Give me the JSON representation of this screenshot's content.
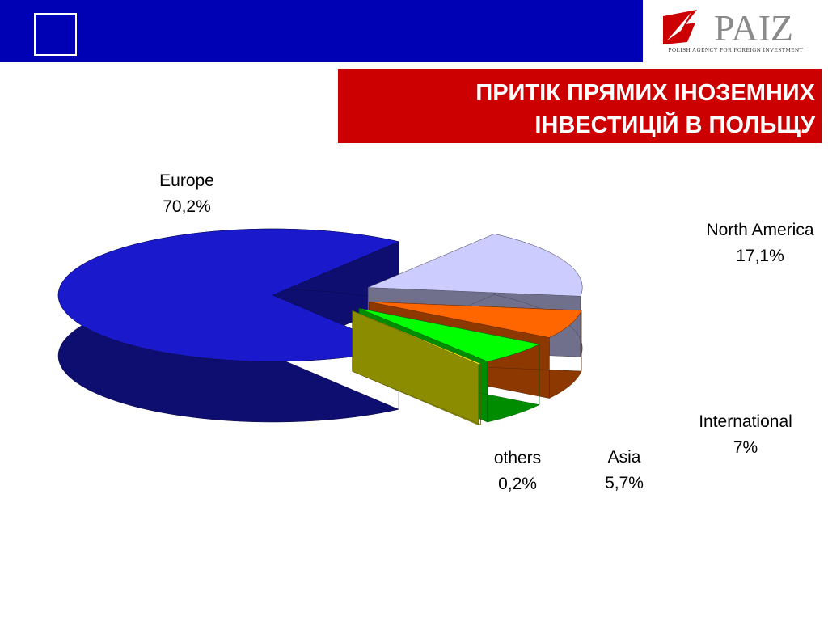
{
  "header": {
    "logo": "PAIZ",
    "logo_subtitle": "POLISH AGENCY FOR FOREIGN INVESTMENT",
    "title_lines": [
      "ПРИТІК ПРЯМИХ ІНОЗЕМНИХ",
      "ІНВЕСТИЦІЙ В ПОЛЬЩУ"
    ]
  },
  "chart_data": {
    "type": "pie",
    "categories": [
      "Europe",
      "North America",
      "International",
      "Asia",
      "others"
    ],
    "values": [
      70.2,
      17.1,
      7,
      5.7,
      0.2
    ],
    "value_labels": [
      "70,2%",
      "17,1%",
      "7%",
      "5,7%",
      "0,2%"
    ],
    "colors": [
      "#1a1acc",
      "#ccccff",
      "#ff6600",
      "#00ff00",
      "#ffff00"
    ]
  }
}
